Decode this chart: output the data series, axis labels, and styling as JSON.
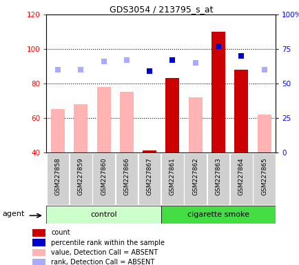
{
  "title": "GDS3054 / 213795_s_at",
  "samples": [
    "GSM227858",
    "GSM227859",
    "GSM227860",
    "GSM227866",
    "GSM227867",
    "GSM227861",
    "GSM227862",
    "GSM227863",
    "GSM227864",
    "GSM227865"
  ],
  "bar_values": [
    65,
    68,
    78,
    75,
    41,
    83,
    72,
    110,
    88,
    62
  ],
  "bar_colors": [
    "#ffb3b3",
    "#ffb3b3",
    "#ffb3b3",
    "#ffb3b3",
    "#cc0000",
    "#cc0000",
    "#ffb3b3",
    "#cc0000",
    "#cc0000",
    "#ffb3b3"
  ],
  "rank_dots_y_right": [
    60,
    60,
    66,
    67,
    59,
    67,
    65,
    77,
    70,
    60
  ],
  "rank_dots_absent": [
    true,
    true,
    true,
    true,
    false,
    false,
    true,
    false,
    false,
    true
  ],
  "ylim_left": [
    40,
    120
  ],
  "ylim_right": [
    0,
    100
  ],
  "left_ticks": [
    40,
    60,
    80,
    100,
    120
  ],
  "right_ticks": [
    0,
    25,
    50,
    75,
    100
  ],
  "right_tick_labels": [
    "0",
    "25",
    "50",
    "75",
    "100%"
  ],
  "control_color": "#ccffcc",
  "smoke_color": "#44dd44",
  "legend_colors": [
    "#cc0000",
    "#0000cc",
    "#ffb3b3",
    "#aaaaff"
  ],
  "legend_labels": [
    "count",
    "percentile rank within the sample",
    "value, Detection Call = ABSENT",
    "rank, Detection Call = ABSENT"
  ]
}
